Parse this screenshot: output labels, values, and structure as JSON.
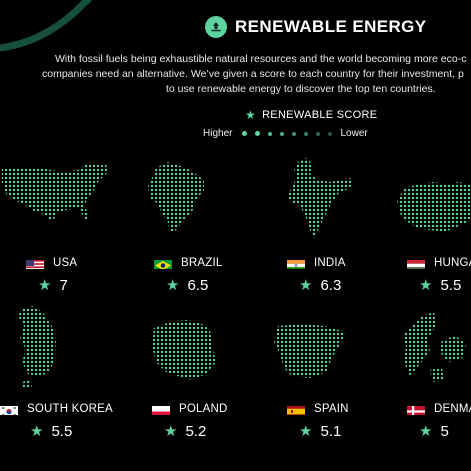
{
  "title": "RENEWABLE ENERGY",
  "description": {
    "line1": "With fossil fuels being exhaustible natural resources and the world becoming more eco-c",
    "line2": "companies need an alternative. We’ve given a score to each country for their investment, p",
    "line3": "to use renewable energy to discover the top ten countries."
  },
  "score_label": "RENEWABLE SCORE",
  "scale": {
    "higher": "Higher",
    "lower": "Lower"
  },
  "colors": {
    "accent": "#5ed3a0",
    "background": "#000000"
  },
  "countries": [
    {
      "name": "USA",
      "score": "7",
      "flag": "us-flag"
    },
    {
      "name": "BRAZIL",
      "score": "6.5",
      "flag": "brazil-flag"
    },
    {
      "name": "INDIA",
      "score": "6.3",
      "flag": "india-flag"
    },
    {
      "name": "HUNGA",
      "score": "5.5",
      "flag": "hungary-flag"
    },
    {
      "name": "SOUTH KOREA",
      "score": "5.5",
      "flag": "south-korea-flag"
    },
    {
      "name": "POLAND",
      "score": "5.2",
      "flag": "poland-flag"
    },
    {
      "name": "SPAIN",
      "score": "5.1",
      "flag": "spain-flag"
    },
    {
      "name": "DENMA",
      "score": "5",
      "flag": "denmark-flag"
    }
  ]
}
